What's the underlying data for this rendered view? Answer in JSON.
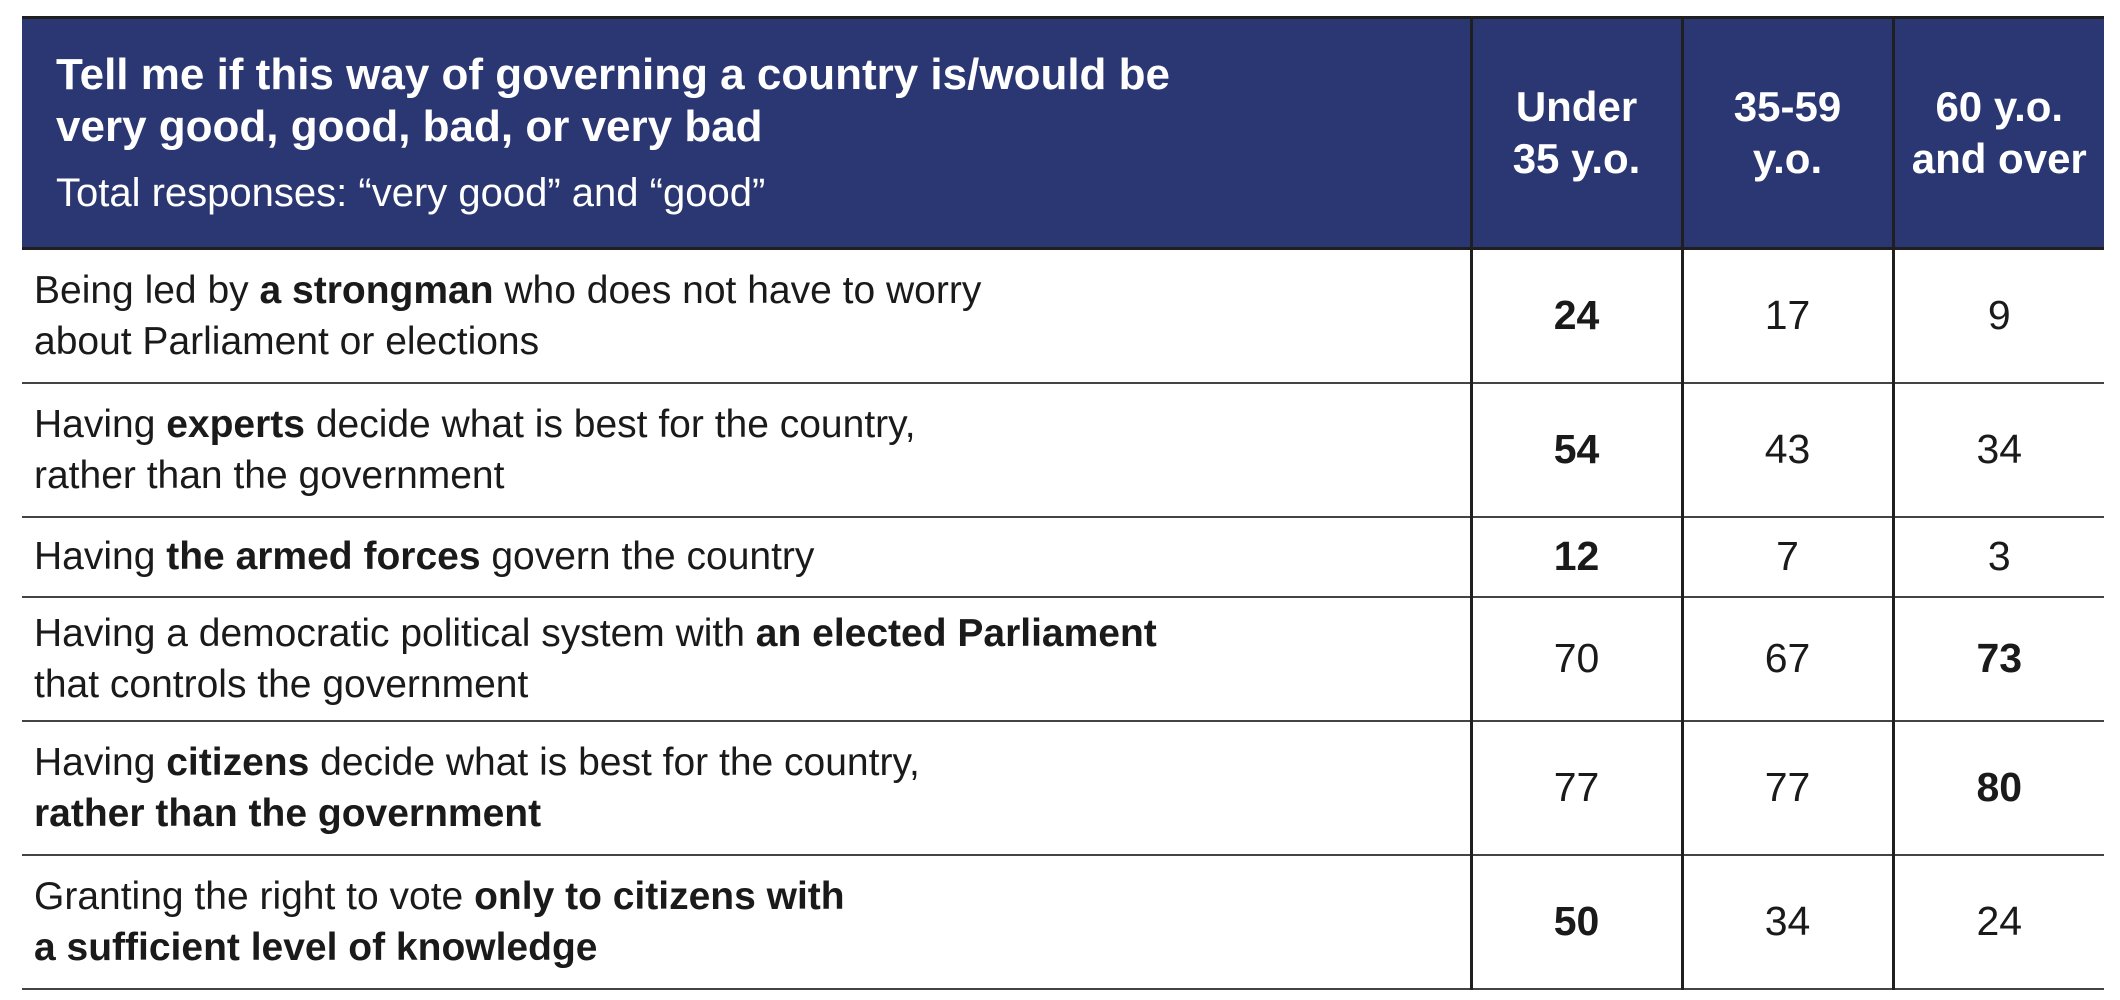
{
  "chart_data": {
    "type": "table",
    "header": {
      "title_line1": "Tell me if this way of governing a country is/would be",
      "title_line2": "very good, good, bad, or very bad",
      "subtitle": "Total responses: “very good” and “good”"
    },
    "columns": [
      {
        "line1": "Under",
        "line2": "35 y.o."
      },
      {
        "line1": "35-59",
        "line2": "y.o."
      },
      {
        "line1": "60 y.o.",
        "line2": "and over"
      }
    ],
    "rows": [
      {
        "lines": [
          [
            {
              "t": "Being led by ",
              "b": false
            },
            {
              "t": "a strongman",
              "b": true
            },
            {
              "t": " who does not have to worry",
              "b": false
            }
          ],
          [
            {
              "t": "about Parliament or elections",
              "b": false
            }
          ]
        ],
        "values": [
          24,
          17,
          9
        ],
        "bold_index": 0
      },
      {
        "lines": [
          [
            {
              "t": "Having ",
              "b": false
            },
            {
              "t": "experts",
              "b": true
            },
            {
              "t": " decide what is best for the country,",
              "b": false
            }
          ],
          [
            {
              "t": "rather than the government",
              "b": false
            }
          ]
        ],
        "values": [
          54,
          43,
          34
        ],
        "bold_index": 0
      },
      {
        "lines": [
          [
            {
              "t": "Having ",
              "b": false
            },
            {
              "t": "the armed forces",
              "b": true
            },
            {
              "t": " govern the country",
              "b": false
            }
          ]
        ],
        "values": [
          12,
          7,
          3
        ],
        "bold_index": 0
      },
      {
        "lines": [
          [
            {
              "t": "Having a democratic political system with ",
              "b": false
            },
            {
              "t": "an elected Parliament",
              "b": true
            }
          ],
          [
            {
              "t": "that controls the government",
              "b": false
            }
          ]
        ],
        "values": [
          70,
          67,
          73
        ],
        "bold_index": 2
      },
      {
        "lines": [
          [
            {
              "t": "Having ",
              "b": false
            },
            {
              "t": "citizens",
              "b": true
            },
            {
              "t": " decide what is best for the country,",
              "b": false
            }
          ],
          [
            {
              "t": "rather than the government",
              "b": true
            }
          ]
        ],
        "values": [
          77,
          77,
          80
        ],
        "bold_index": 2
      },
      {
        "lines": [
          [
            {
              "t": "Granting the right to vote ",
              "b": false
            },
            {
              "t": "only to citizens with",
              "b": true
            }
          ],
          [
            {
              "t": "a sufficient level of knowledge",
              "b": true
            }
          ]
        ],
        "values": [
          50,
          34,
          24
        ],
        "bold_index": 0
      }
    ],
    "colors": {
      "header_bg": "#2b3773",
      "header_text": "#ffffff",
      "body_text": "#1a1a1a"
    }
  }
}
